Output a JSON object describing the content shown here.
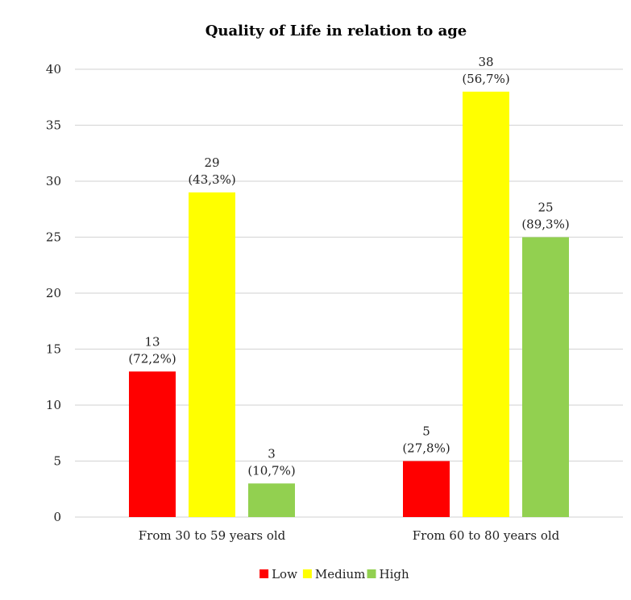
{
  "chart_data": {
    "type": "bar",
    "title": "Quality of Life in relation to age",
    "xlabel": "",
    "ylabel": "",
    "ylim": [
      0,
      40
    ],
    "yticks": [
      0,
      5,
      10,
      15,
      20,
      25,
      30,
      35,
      40
    ],
    "grid": true,
    "legend_position": "bottom",
    "categories": [
      "From 30 to 59 years old",
      "From 60 to 80 years old"
    ],
    "series": [
      {
        "name": "Low",
        "color": "#ff0000",
        "values": [
          13,
          5
        ],
        "labels": [
          "(72,2%)",
          "(27,8%)"
        ]
      },
      {
        "name": "Medium",
        "color": "#ffff00",
        "values": [
          29,
          38
        ],
        "labels": [
          "(43,3%)",
          "(56,7%)"
        ]
      },
      {
        "name": "High",
        "color": "#92d050",
        "values": [
          3,
          25
        ],
        "labels": [
          "(10,7%)",
          "(89,3%)"
        ]
      }
    ]
  }
}
